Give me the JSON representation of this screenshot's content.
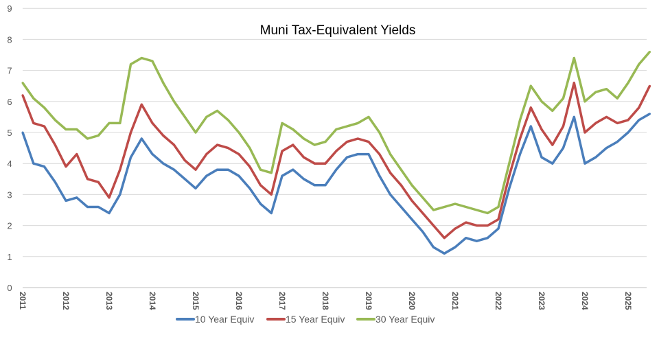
{
  "chart_data": {
    "type": "line",
    "title": "Muni Tax-Equivalent Yields",
    "xlabel": "",
    "ylabel": "",
    "ylim": [
      0,
      9
    ],
    "yticks": [
      "0",
      "1",
      "2",
      "3",
      "4",
      "5",
      "6",
      "7",
      "8",
      "9"
    ],
    "xlim": [
      2011,
      2025.6
    ],
    "xticks": [
      "2011",
      "2012",
      "2013",
      "2014",
      "2015",
      "2016",
      "2017",
      "2018",
      "2019",
      "2020",
      "2021",
      "2022",
      "2023",
      "2024",
      "2025"
    ],
    "grid": "horizontal",
    "legend": "bottom",
    "x_start": 2011,
    "x_step": 0.25,
    "series": [
      {
        "name": "10 Year Equiv",
        "color": "#4a7ebb",
        "values": [
          5.0,
          4.0,
          3.9,
          3.4,
          2.8,
          2.9,
          2.6,
          2.6,
          2.4,
          3.0,
          4.2,
          4.8,
          4.3,
          4.0,
          3.8,
          3.5,
          3.2,
          3.6,
          3.8,
          3.8,
          3.6,
          3.2,
          2.7,
          2.4,
          3.6,
          3.8,
          3.5,
          3.3,
          3.3,
          3.8,
          4.2,
          4.3,
          4.3,
          3.6,
          3.0,
          2.6,
          2.2,
          1.8,
          1.3,
          1.1,
          1.3,
          1.6,
          1.5,
          1.6,
          1.9,
          3.2,
          4.3,
          5.2,
          4.2,
          4.0,
          4.5,
          5.5,
          4.0,
          4.2,
          4.5,
          4.7,
          5.0,
          5.4,
          5.6
        ]
      },
      {
        "name": "15 Year Equiv",
        "color": "#be4b48",
        "values": [
          6.2,
          5.3,
          5.2,
          4.6,
          3.9,
          4.3,
          3.5,
          3.4,
          2.9,
          3.8,
          5.0,
          5.9,
          5.3,
          4.9,
          4.6,
          4.1,
          3.8,
          4.3,
          4.6,
          4.5,
          4.3,
          3.9,
          3.3,
          3.0,
          4.4,
          4.6,
          4.2,
          4.0,
          4.0,
          4.4,
          4.7,
          4.8,
          4.7,
          4.3,
          3.7,
          3.3,
          2.8,
          2.4,
          2.0,
          1.6,
          1.9,
          2.1,
          2.0,
          2.0,
          2.2,
          3.6,
          4.8,
          5.8,
          5.1,
          4.6,
          5.2,
          6.6,
          5.0,
          5.3,
          5.5,
          5.3,
          5.4,
          5.8,
          6.5
        ]
      },
      {
        "name": "30 Year Equiv",
        "color": "#98b954",
        "values": [
          6.6,
          6.1,
          5.8,
          5.4,
          5.1,
          5.1,
          4.8,
          4.9,
          5.3,
          5.3,
          7.2,
          7.4,
          7.3,
          6.6,
          6.0,
          5.5,
          5.0,
          5.5,
          5.7,
          5.4,
          5.0,
          4.5,
          3.8,
          3.7,
          5.3,
          5.1,
          4.8,
          4.6,
          4.7,
          5.1,
          5.2,
          5.3,
          5.5,
          5.0,
          4.3,
          3.8,
          3.3,
          2.9,
          2.5,
          2.6,
          2.7,
          2.6,
          2.5,
          2.4,
          2.6,
          4.0,
          5.4,
          6.5,
          6.0,
          5.7,
          6.1,
          7.4,
          6.0,
          6.3,
          6.4,
          6.1,
          6.6,
          7.2,
          7.6
        ]
      }
    ]
  }
}
